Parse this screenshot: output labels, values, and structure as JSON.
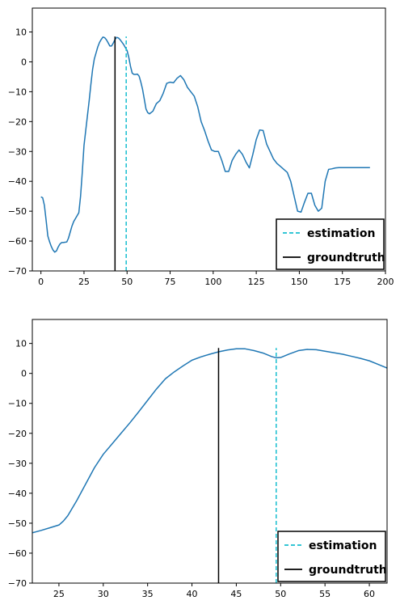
{
  "chart_data": [
    {
      "type": "line",
      "xlim": [
        -5,
        200
      ],
      "ylim": [
        -70,
        18
      ],
      "xticks": [
        0,
        25,
        50,
        75,
        100,
        125,
        150,
        175,
        200
      ],
      "yticks": [
        10,
        0,
        -10,
        -20,
        -30,
        -40,
        -50,
        -60,
        -70
      ],
      "xtick_labels": [
        "0",
        "25",
        "50",
        "75",
        "100",
        "125",
        "150",
        "175",
        "200"
      ],
      "ytick_labels": [
        "10",
        "0",
        "−10",
        "−20",
        "−30",
        "−40",
        "−50",
        "−60",
        "−70"
      ],
      "grid": false,
      "legend_position": "lower-right",
      "series": [
        {
          "type": "line",
          "color": "#1f77b4",
          "x": [
            0,
            1,
            2,
            3,
            4,
            5,
            6,
            7,
            8,
            9,
            10,
            11,
            12,
            13,
            14,
            15,
            16,
            17,
            18,
            19,
            20,
            22,
            23,
            24,
            25,
            26,
            27,
            28,
            29,
            30,
            31,
            32,
            33,
            34,
            35,
            36,
            37,
            38,
            39,
            40,
            41,
            42,
            43,
            44,
            45,
            46,
            47,
            48,
            49,
            50,
            51,
            52,
            53,
            54,
            55,
            56,
            57,
            58,
            59,
            60,
            61,
            62,
            63,
            65,
            67,
            69,
            71,
            73,
            75,
            77,
            79,
            81,
            83,
            85,
            87,
            89,
            91,
            93,
            95,
            97,
            99,
            101,
            103,
            105,
            107,
            109,
            111,
            113,
            115,
            117,
            119,
            121,
            123,
            125,
            127,
            129,
            131,
            133,
            135,
            137,
            139,
            141,
            143,
            145,
            147,
            149,
            151,
            153,
            155,
            157,
            159,
            161,
            163,
            165,
            167,
            169,
            171,
            173,
            175,
            177,
            179,
            181,
            183,
            185,
            187,
            189,
            191
          ],
          "y": [
            -45.2,
            -45.5,
            -48,
            -53,
            -58.3,
            -60.2,
            -61.8,
            -63,
            -63.7,
            -63.3,
            -62,
            -61,
            -60.5,
            -60.5,
            -60.4,
            -60.3,
            -59,
            -57,
            -55,
            -53.5,
            -52.5,
            -50.5,
            -45,
            -37,
            -28,
            -23,
            -18,
            -13,
            -7.5,
            -2.5,
            1,
            3,
            5,
            6.5,
            7.5,
            8.3,
            8.1,
            7.4,
            6.4,
            5.3,
            5.3,
            6.3,
            7.5,
            8.2,
            8.0,
            7.4,
            6.6,
            5.8,
            4.8,
            3.8,
            1.5,
            -1.5,
            -3.8,
            -4.2,
            -4.2,
            -4.1,
            -4.8,
            -6.8,
            -9.2,
            -12.5,
            -15.8,
            -17.0,
            -17.4,
            -16.5,
            -14.0,
            -13.0,
            -10.5,
            -7.2,
            -6.8,
            -7.0,
            -5.5,
            -4.6,
            -6.0,
            -8.5,
            -10.0,
            -11.5,
            -15.0,
            -20.0,
            -23.0,
            -26.5,
            -29.5,
            -30.0,
            -30.0,
            -33.0,
            -36.7,
            -36.7,
            -33.0,
            -31.0,
            -29.5,
            -31.0,
            -33.5,
            -35.5,
            -31.0,
            -26.0,
            -22.8,
            -23.0,
            -27.5,
            -30.0,
            -32.5,
            -34.0,
            -35.0,
            -36.0,
            -37.0,
            -40.0,
            -45.0,
            -50.0,
            -50.3,
            -47.0,
            -44.0,
            -44.0,
            -48.0,
            -50.0,
            -49.0,
            -40.0,
            -36.0,
            -35.8,
            -35.5,
            -35.4,
            -35.4,
            -35.4,
            -35.4,
            -35.4,
            -35.4,
            -35.4,
            -35.4,
            -35.4,
            -35.4
          ]
        }
      ],
      "lines": [
        {
          "label": "estimation",
          "x": 49.5,
          "y_range": [
            -70,
            8.5
          ],
          "color": "#17becf",
          "dash": "dashed"
        },
        {
          "label": "groundtruth",
          "x": 43,
          "y_range": [
            -70,
            8.5
          ],
          "color": "#000000",
          "dash": "solid"
        }
      ],
      "legend": [
        "estimation",
        "groundtruth"
      ]
    },
    {
      "type": "line",
      "xlim": [
        22,
        62
      ],
      "ylim": [
        -70,
        18
      ],
      "xticks": [
        25,
        30,
        35,
        40,
        45,
        50,
        55,
        60
      ],
      "yticks": [
        10,
        0,
        -10,
        -20,
        -30,
        -40,
        -50,
        -60,
        -70
      ],
      "xtick_labels": [
        "25",
        "30",
        "35",
        "40",
        "45",
        "50",
        "55",
        "60"
      ],
      "ytick_labels": [
        "10",
        "0",
        "−10",
        "−20",
        "−30",
        "−40",
        "−50",
        "−60",
        "−70"
      ],
      "grid": false,
      "legend_position": "lower-right",
      "series": [
        {
          "type": "line",
          "color": "#1f77b4",
          "x": [
            22,
            23,
            24,
            25,
            25.5,
            26,
            26.5,
            27,
            28,
            29,
            30,
            31,
            32,
            33,
            34,
            35,
            36,
            37,
            38,
            39,
            40,
            41,
            42,
            43,
            44,
            45,
            46,
            47,
            48,
            49,
            49.5,
            50,
            51,
            52,
            53,
            54,
            55,
            56,
            57,
            58,
            59,
            60,
            61,
            62
          ],
          "y": [
            -53.2,
            -52.4,
            -51.5,
            -50.6,
            -49.3,
            -47.5,
            -45.0,
            -42.5,
            -37.0,
            -31.5,
            -27.0,
            -23.5,
            -20.0,
            -16.5,
            -12.8,
            -9.0,
            -5.2,
            -1.8,
            0.5,
            2.5,
            4.4,
            5.5,
            6.4,
            7.2,
            7.8,
            8.2,
            8.2,
            7.6,
            6.8,
            5.6,
            5.2,
            5.3,
            6.5,
            7.6,
            8.0,
            7.9,
            7.4,
            6.9,
            6.4,
            5.7,
            5.0,
            4.2,
            3.0,
            1.8
          ]
        }
      ],
      "lines": [
        {
          "label": "estimation",
          "x": 49.5,
          "y_range": [
            -70,
            8.5
          ],
          "color": "#17becf",
          "dash": "dashed"
        },
        {
          "label": "groundtruth",
          "x": 43,
          "y_range": [
            -70,
            8.5
          ],
          "color": "#000000",
          "dash": "solid"
        }
      ],
      "legend": [
        "estimation",
        "groundtruth"
      ]
    }
  ]
}
